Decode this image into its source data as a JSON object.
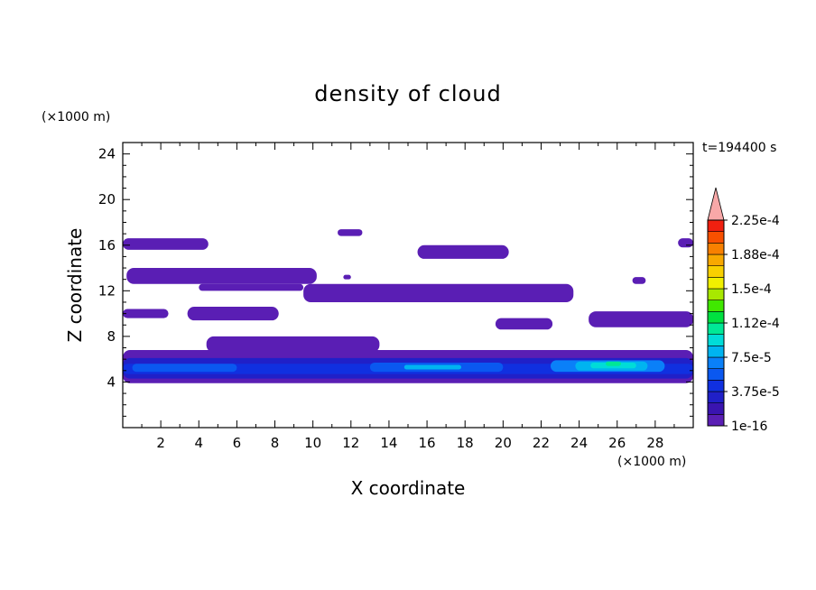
{
  "chart_data": {
    "type": "heatmap",
    "title": "density of cloud",
    "xlabel": "X coordinate",
    "ylabel": "Z coordinate",
    "x_unit": "(×1000 m)",
    "y_unit": "(×1000 m)",
    "time_label": "t=194400 s",
    "xlim": [
      0,
      30
    ],
    "ylim": [
      0,
      25
    ],
    "x_ticks": [
      "2",
      "4",
      "6",
      "8",
      "10",
      "12",
      "14",
      "16",
      "18",
      "20",
      "22",
      "24",
      "26",
      "28"
    ],
    "y_ticks": [
      "4",
      "8",
      "12",
      "16",
      "20",
      "24"
    ],
    "colorbar": {
      "labels": [
        "1e-16",
        "3.75e-5",
        "7.5e-5",
        "1.12e-4",
        "1.5e-4",
        "1.88e-4",
        "2.25e-4"
      ],
      "colors": [
        "#5a1eb4",
        "#3a14b0",
        "#2020c8",
        "#1030e0",
        "#0a58f0",
        "#0a80f8",
        "#00b4f0",
        "#00dcd8",
        "#00e896",
        "#00e040",
        "#40e800",
        "#a8e800",
        "#f0f000",
        "#f8d000",
        "#f8a800",
        "#f88000",
        "#f85000",
        "#f02010",
        "#f8a8a8"
      ]
    },
    "cloud_layers": [
      {
        "x0": 0.0,
        "x1": 4.5,
        "z0": 15.6,
        "z1": 16.6,
        "level": 0
      },
      {
        "x0": 0.2,
        "x1": 10.2,
        "z0": 12.6,
        "z1": 14.0,
        "level": 0
      },
      {
        "x0": 4.0,
        "x1": 9.5,
        "z0": 12.0,
        "z1": 12.6,
        "level": 0
      },
      {
        "x0": 11.3,
        "x1": 12.6,
        "z0": 16.8,
        "z1": 17.4,
        "level": 0
      },
      {
        "x0": 11.6,
        "x1": 12.0,
        "z0": 13.0,
        "z1": 13.4,
        "level": 0
      },
      {
        "x0": 15.5,
        "x1": 20.3,
        "z0": 14.8,
        "z1": 16.0,
        "level": 0
      },
      {
        "x0": 9.5,
        "x1": 23.7,
        "z0": 11.0,
        "z1": 12.6,
        "level": 0
      },
      {
        "x0": 0.0,
        "x1": 2.4,
        "z0": 9.6,
        "z1": 10.4,
        "level": 0
      },
      {
        "x0": 3.4,
        "x1": 8.2,
        "z0": 9.4,
        "z1": 10.6,
        "level": 0
      },
      {
        "x0": 19.6,
        "x1": 22.6,
        "z0": 8.6,
        "z1": 9.6,
        "level": 0
      },
      {
        "x0": 24.5,
        "x1": 30.0,
        "z0": 8.8,
        "z1": 10.2,
        "level": 0
      },
      {
        "x0": 4.4,
        "x1": 13.5,
        "z0": 6.6,
        "z1": 8.0,
        "level": 0
      },
      {
        "x0": 26.8,
        "x1": 27.5,
        "z0": 12.6,
        "z1": 13.2,
        "level": 0
      },
      {
        "x0": 29.2,
        "x1": 30.0,
        "z0": 15.8,
        "z1": 16.6,
        "level": 0
      },
      {
        "x0": 0.0,
        "x1": 30.0,
        "z0": 3.9,
        "z1": 6.8,
        "level": 0
      },
      {
        "x0": 0.0,
        "x1": 30.0,
        "z0": 4.3,
        "z1": 6.1,
        "level": 2
      },
      {
        "x0": 0.0,
        "x1": 30.0,
        "z0": 4.7,
        "z1": 5.6,
        "level": 3
      },
      {
        "x0": 0.5,
        "x1": 6.0,
        "z0": 4.9,
        "z1": 5.6,
        "level": 4
      },
      {
        "x0": 13.0,
        "x1": 20.0,
        "z0": 4.9,
        "z1": 5.7,
        "level": 4
      },
      {
        "x0": 22.5,
        "x1": 28.5,
        "z0": 4.9,
        "z1": 5.9,
        "level": 5
      },
      {
        "x0": 23.8,
        "x1": 27.6,
        "z0": 5.0,
        "z1": 5.8,
        "level": 6
      },
      {
        "x0": 14.8,
        "x1": 17.8,
        "z0": 5.1,
        "z1": 5.5,
        "level": 6
      },
      {
        "x0": 24.6,
        "x1": 27.0,
        "z0": 5.2,
        "z1": 5.7,
        "level": 7
      },
      {
        "x0": 25.4,
        "x1": 26.2,
        "z0": 5.4,
        "z1": 5.8,
        "level": 8
      }
    ]
  }
}
